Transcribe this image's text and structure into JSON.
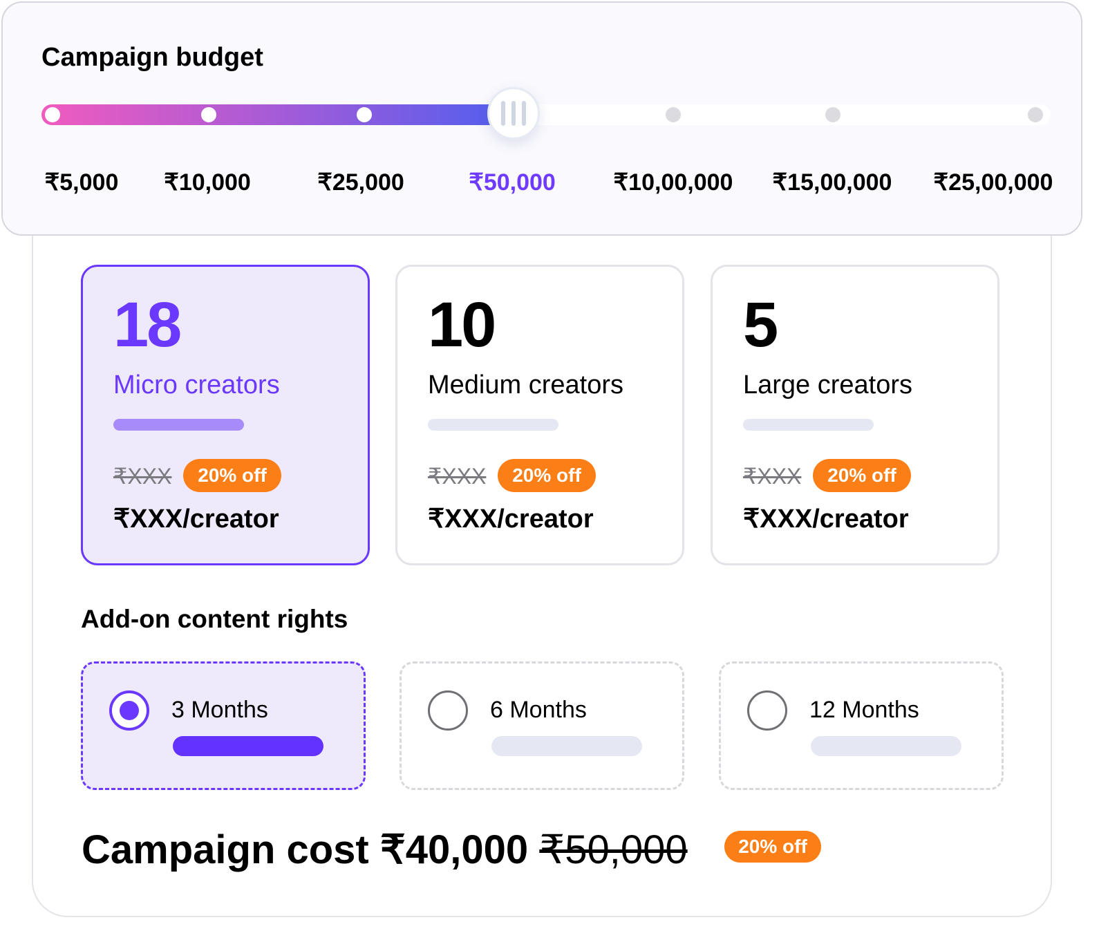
{
  "budget": {
    "title": "Campaign budget",
    "stops": [
      "₹5,000",
      "₹10,000",
      "₹25,000",
      "₹50,000",
      "₹10,00,000",
      "₹15,00,000",
      "₹25,00,000"
    ],
    "selected_index": 3,
    "selected_value": "₹50,000",
    "gradient_colors": [
      "#f05bbf",
      "#4b5ff0"
    ]
  },
  "creators": [
    {
      "count": "18",
      "label": "Micro creators",
      "old_price": "₹XXX",
      "discount": "20% off",
      "price": "₹XXX/creator",
      "selected": true
    },
    {
      "count": "10",
      "label": "Medium creators",
      "old_price": "₹XXX",
      "discount": "20% off",
      "price": "₹XXX/creator",
      "selected": false
    },
    {
      "count": "5",
      "label": "Large creators",
      "old_price": "₹XXX",
      "discount": "20% off",
      "price": "₹XXX/creator",
      "selected": false
    }
  ],
  "addon": {
    "title": "Add-on content rights",
    "options": [
      {
        "label": "3 Months",
        "selected": true
      },
      {
        "label": "6 Months",
        "selected": false
      },
      {
        "label": "12 Months",
        "selected": false
      }
    ]
  },
  "cost": {
    "label": "Campaign cost",
    "price": "₹40,000",
    "old_price": "₹50,000",
    "discount": "20% off"
  },
  "colors": {
    "accent": "#6a38ff",
    "badge": "#fc7e16"
  }
}
